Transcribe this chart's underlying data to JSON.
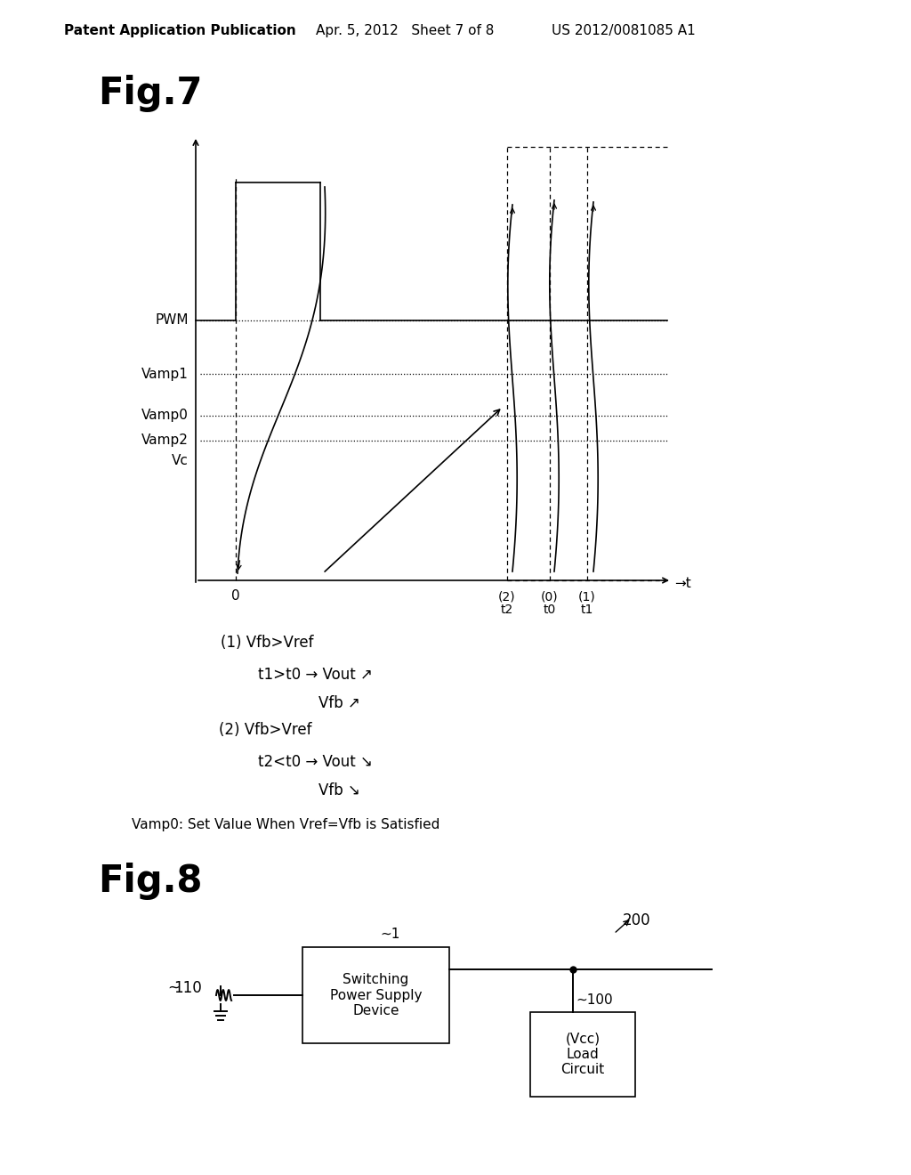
{
  "bg_color": "#ffffff",
  "header_left": "Patent Application Publication",
  "header_mid": "Apr. 5, 2012   Sheet 7 of 8",
  "header_right": "US 2012/0081085 A1",
  "fig7_title": "Fig.7",
  "fig8_title": "Fig.8",
  "annotation1_line1": "(1) Vfb>Vref",
  "annotation1_line2": "t1>t0 → Vout ↗",
  "annotation1_line3": "Vfb ↗",
  "annotation2_line1": "(2) Vfb>Vref",
  "annotation2_line2": "t2<t0 → Vout ↘",
  "annotation2_line3": "Vfb ↘",
  "vamp0_note": "Vamp0: Set Value When Vref=Vfb is Satisfied",
  "box1_label": "Switching\nPower Supply\nDevice",
  "box2_label": "(Vcc)\nLoad\nCircuit",
  "label_110": "110",
  "label_200": "200",
  "label_100": "~100",
  "label_1": "~1"
}
